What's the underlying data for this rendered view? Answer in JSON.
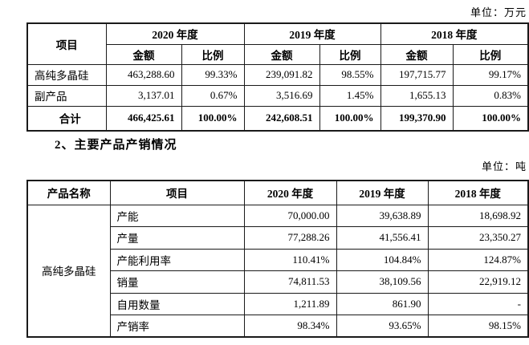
{
  "page": {
    "unit_top": "单位：万元",
    "unit_bottom": "单位：吨",
    "section_heading": "2、主要产品产销情况"
  },
  "table1": {
    "item_header": "项目",
    "year_headers": [
      "2020 年度",
      "2019 年度",
      "2018 年度"
    ],
    "sub_headers": [
      "金额",
      "比例",
      "金额",
      "比例",
      "金额",
      "比例"
    ],
    "rows": [
      {
        "label": "高纯多晶硅",
        "bold": false,
        "values": [
          "463,288.60",
          "99.33%",
          "239,091.82",
          "98.55%",
          "197,715.77",
          "99.17%"
        ]
      },
      {
        "label": "副产品",
        "bold": false,
        "values": [
          "3,137.01",
          "0.67%",
          "3,516.69",
          "1.45%",
          "1,655.13",
          "0.83%"
        ]
      },
      {
        "label": "合计",
        "bold": true,
        "values": [
          "466,425.61",
          "100.00%",
          "242,608.51",
          "100.00%",
          "199,370.90",
          "100.00%"
        ]
      }
    ]
  },
  "table2": {
    "headers": [
      "产品名称",
      "项目",
      "2020 年度",
      "2019 年度",
      "2018 年度"
    ],
    "product_name": "高纯多晶硅",
    "rows": [
      {
        "label": "产能",
        "values": [
          "70,000.00",
          "39,638.89",
          "18,698.92"
        ]
      },
      {
        "label": "产量",
        "values": [
          "77,288.26",
          "41,556.41",
          "23,350.27"
        ]
      },
      {
        "label": "产能利用率",
        "values": [
          "110.41%",
          "104.84%",
          "124.87%"
        ]
      },
      {
        "label": "销量",
        "values": [
          "74,811.53",
          "38,109.56",
          "22,919.12"
        ]
      },
      {
        "label": "自用数量",
        "values": [
          "1,211.89",
          "861.90",
          "-"
        ]
      },
      {
        "label": "产销率",
        "values": [
          "98.34%",
          "93.65%",
          "98.15%"
        ]
      }
    ]
  }
}
